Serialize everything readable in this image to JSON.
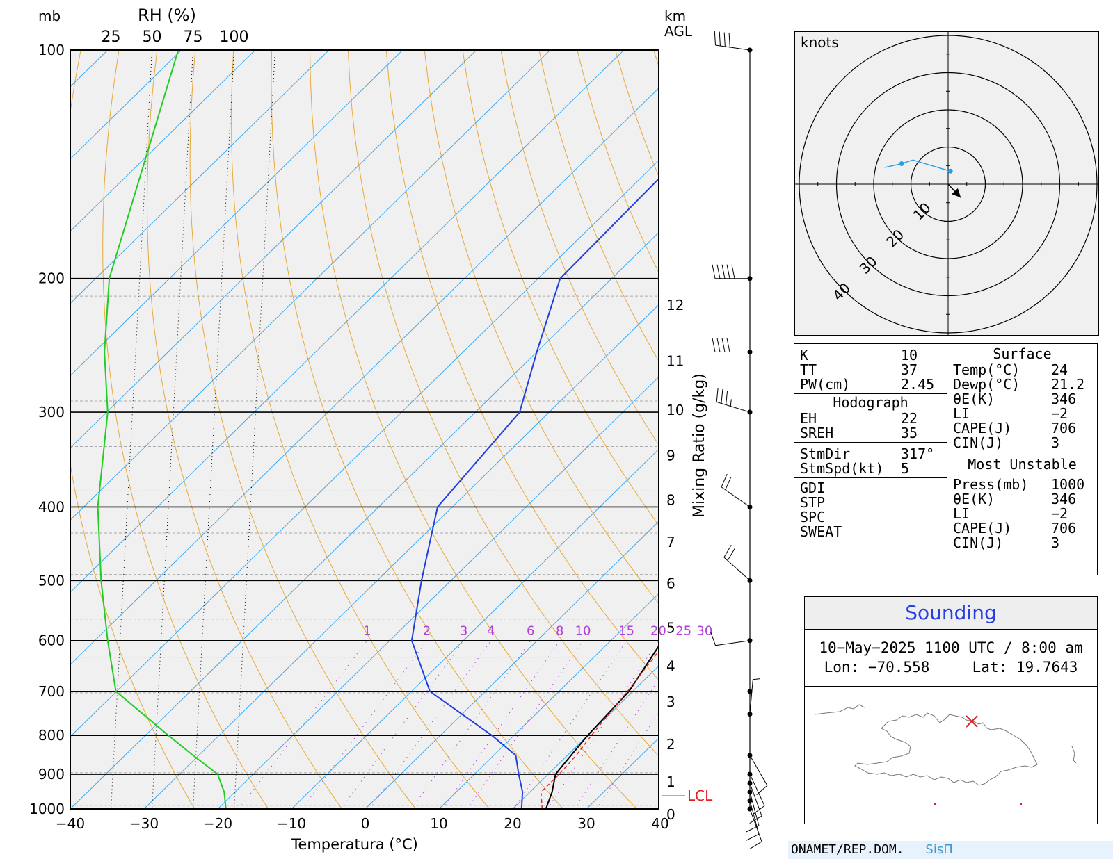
{
  "chart_data": [
    {
      "type": "line",
      "title": "",
      "xlabel": "Temperatura (°C)",
      "ylabel": "mb",
      "xlim": [
        -40,
        40
      ],
      "ylim": [
        1000,
        100
      ],
      "y_scale": "log",
      "x_ticks": [
        -40,
        -30,
        -20,
        -10,
        0,
        10,
        20,
        30,
        40
      ],
      "pressure_ticks": [
        100,
        200,
        300,
        400,
        500,
        600,
        700,
        800,
        900,
        1000
      ],
      "rh_axis": {
        "label": "RH (%)",
        "ticks": [
          25,
          50,
          75,
          100
        ]
      },
      "height_axis": {
        "label_top": "km",
        "label_bottom": "AGL",
        "ticks": [
          0,
          1,
          2,
          3,
          4,
          5,
          6,
          7,
          8,
          9,
          10,
          11,
          12
        ]
      },
      "mixing_ratio": {
        "label": "Mixing Ratio (g/kg)",
        "values": [
          1,
          2,
          3,
          4,
          6,
          8,
          10,
          15,
          20,
          25,
          30
        ]
      },
      "lcl_label": "LCL",
      "series": [
        {
          "key": "temperature",
          "color": "#000000",
          "points": [
            [
              1000,
              24.5
            ],
            [
              950,
              23
            ],
            [
              900,
              21
            ],
            [
              850,
              20.5
            ],
            [
              800,
              20
            ],
            [
              700,
              19.5
            ],
            [
              600,
              17
            ],
            [
              500,
              13.5
            ],
            [
              400,
              9
            ],
            [
              300,
              0
            ],
            [
              250,
              -7
            ],
            [
              200,
              -16
            ],
            [
              100,
              -31
            ]
          ]
        },
        {
          "key": "dewpoint",
          "color": "#1f3fe0",
          "points": [
            [
              1000,
              21.2
            ],
            [
              950,
              19
            ],
            [
              900,
              16
            ],
            [
              850,
              13
            ],
            [
              800,
              7
            ],
            [
              700,
              -7.5
            ],
            [
              600,
              -17
            ],
            [
              500,
              -24
            ],
            [
              400,
              -32
            ],
            [
              300,
              -34
            ],
            [
              250,
              -40
            ],
            [
              200,
              -47
            ],
            [
              100,
              -48
            ]
          ]
        },
        {
          "key": "parcel",
          "color": "#e02020",
          "dashed": true,
          "points": [
            [
              1000,
              24
            ],
            [
              950,
              21.5
            ],
            [
              900,
              21.5
            ],
            [
              850,
              21.2
            ],
            [
              800,
              20.5
            ],
            [
              700,
              19.3
            ],
            [
              600,
              17.6
            ],
            [
              500,
              15.6
            ],
            [
              400,
              11
            ],
            [
              300,
              3.5
            ],
            [
              250,
              -3
            ],
            [
              200,
              -14
            ],
            [
              110,
              -40
            ]
          ]
        },
        {
          "key": "rh",
          "color": "#22cc22",
          "points": [
            [
              1000,
              95
            ],
            [
              950,
              94
            ],
            [
              900,
              90
            ],
            [
              850,
              75
            ],
            [
              800,
              60
            ],
            [
              700,
              28
            ],
            [
              600,
              23
            ],
            [
              500,
              19
            ],
            [
              400,
              17
            ],
            [
              300,
              23
            ],
            [
              250,
              21
            ],
            [
              200,
              24
            ],
            [
              100,
              66
            ]
          ]
        }
      ],
      "wind_barbs": [
        {
          "p": 100,
          "dir": 278,
          "spd": 40
        },
        {
          "p": 200,
          "dir": 270,
          "spd": 50
        },
        {
          "p": 250,
          "dir": 270,
          "spd": 40
        },
        {
          "p": 300,
          "dir": 287,
          "spd": 35
        },
        {
          "p": 400,
          "dir": 305,
          "spd": 20
        },
        {
          "p": 500,
          "dir": 312,
          "spd": 20
        },
        {
          "p": 600,
          "dir": 262,
          "spd": 10
        },
        {
          "p": 700,
          "dir": 0,
          "spd": 0
        },
        {
          "p": 750,
          "dir": 5,
          "spd": 5
        },
        {
          "p": 850,
          "dir": 150,
          "spd": 10
        },
        {
          "p": 900,
          "dir": 155,
          "spd": 10
        },
        {
          "p": 925,
          "dir": 160,
          "spd": 10
        },
        {
          "p": 950,
          "dir": 165,
          "spd": 10
        },
        {
          "p": 975,
          "dir": 165,
          "spd": 10
        },
        {
          "p": 1000,
          "dir": 160,
          "spd": 10
        }
      ]
    },
    {
      "type": "scatter",
      "title": "knots",
      "ring_labels": [
        10,
        20,
        30,
        40
      ],
      "hodograph": [
        [
          0.6,
          3.5
        ],
        [
          -9.5,
          6.5
        ],
        [
          -12.5,
          5.5
        ],
        [
          -17,
          4.5
        ]
      ],
      "hodograph_markers": [
        [
          0.6,
          3.5
        ],
        [
          -12.5,
          5.5
        ]
      ],
      "storm_motion": [
        3.4,
        -3.6
      ]
    }
  ],
  "indices": {
    "left": [
      {
        "k": "K",
        "v": "10"
      },
      {
        "k": "TT",
        "v": "37"
      },
      {
        "k": "PW(cm)",
        "v": "2.45"
      }
    ],
    "hodograph_title": "Hodograph",
    "hodograph": [
      {
        "k": "EH",
        "v": "22"
      },
      {
        "k": "SREH",
        "v": "35"
      }
    ],
    "storm": [
      {
        "k": "StmDir",
        "v": "317°"
      },
      {
        "k": "StmSpd(kt)",
        "v": "5"
      }
    ],
    "other": [
      {
        "k": "GDI",
        "v": ""
      },
      {
        "k": "STP",
        "v": ""
      },
      {
        "k": "SPC",
        "v": ""
      },
      {
        "k": "SWEAT",
        "v": ""
      }
    ],
    "surface_title": "Surface",
    "surface": [
      {
        "k": "Temp(°C)",
        "v": "24"
      },
      {
        "k": "Dewp(°C)",
        "v": "21.2"
      },
      {
        "k": "θE(K)",
        "v": "346"
      },
      {
        "k": "LI",
        "v": "−2"
      },
      {
        "k": "CAPE(J)",
        "v": "706"
      },
      {
        "k": "CIN(J)",
        "v": "3"
      }
    ],
    "mu_title": "Most Unstable",
    "mu": [
      {
        "k": "Press(mb)",
        "v": "1000"
      },
      {
        "k": "θE(K)",
        "v": "346"
      },
      {
        "k": "LI",
        "v": "−2"
      },
      {
        "k": "CAPE(J)",
        "v": "706"
      },
      {
        "k": "CIN(J)",
        "v": "3"
      }
    ]
  },
  "sounding": {
    "title": "Sounding",
    "date": "10−May−2025 1100 UTC / 8:00 am",
    "lon": "Lon: −70.558",
    "lat": "Lat: 19.7643"
  },
  "footer": {
    "org": "ONAMET/REP.DOM.",
    "brand": "SisΠ"
  },
  "colors": {
    "isotherm": "#3aa8f0",
    "dry_adiabat": "#e8a93a",
    "mixing_ratio": "#b040d8",
    "grid": "#999999",
    "plot_bg": "#f0f0f0"
  }
}
